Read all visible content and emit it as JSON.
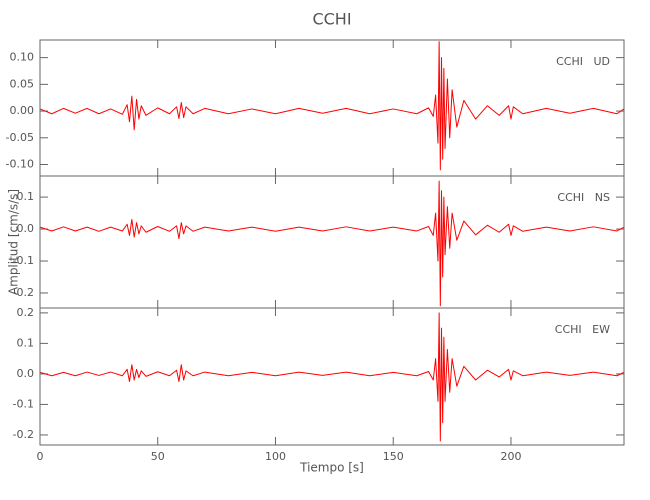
{
  "chart_data": [
    {
      "type": "line",
      "title": "CCHI",
      "label": "CCHI   UD",
      "color": "#ff0000",
      "xlim": [
        0,
        248
      ],
      "ylim": [
        -0.1215,
        0.133
      ],
      "yticks": [
        {
          "value": -0.1,
          "label": "-0.10"
        },
        {
          "value": -0.05,
          "label": "-0.05"
        },
        {
          "value": 0,
          "label": "0.00"
        },
        {
          "value": 0.05,
          "label": "0.05"
        },
        {
          "value": 0.1,
          "label": "0.10"
        }
      ],
      "x": [
        0,
        5,
        10,
        15,
        20,
        25,
        30,
        35,
        37,
        38,
        39,
        40,
        41,
        42,
        43,
        45,
        50,
        55,
        58,
        59,
        60,
        61,
        62,
        65,
        70,
        80,
        90,
        100,
        110,
        120,
        130,
        140,
        150,
        160,
        165,
        167,
        168,
        169,
        169.5,
        170,
        170.5,
        171,
        171.5,
        172,
        173,
        174,
        175,
        177,
        180,
        185,
        190,
        195,
        199,
        200,
        201,
        205,
        215,
        225,
        235,
        245,
        248
      ],
      "values": [
        0.004,
        -0.005,
        0.005,
        -0.004,
        0.005,
        -0.005,
        0.004,
        -0.006,
        0.012,
        -0.02,
        0.028,
        -0.035,
        0.022,
        -0.015,
        0.01,
        -0.008,
        0.006,
        -0.005,
        0.008,
        -0.014,
        0.016,
        -0.012,
        0.008,
        -0.005,
        0.005,
        -0.005,
        0.004,
        -0.005,
        0.005,
        -0.004,
        0.005,
        -0.005,
        0.004,
        -0.005,
        0.006,
        -0.01,
        0.03,
        -0.06,
        0.13,
        -0.11,
        0.1,
        -0.09,
        0.08,
        -0.07,
        0.06,
        -0.05,
        0.04,
        -0.03,
        0.02,
        -0.015,
        0.01,
        -0.008,
        0.01,
        -0.015,
        0.008,
        -0.005,
        0.005,
        -0.004,
        0.005,
        -0.005,
        0.004
      ]
    },
    {
      "type": "line",
      "ylabel": "Amplitud [cm/s/s]",
      "label": "CCHI   NS",
      "color": "#ff0000",
      "xlim": [
        0,
        248
      ],
      "ylim": [
        -0.247,
        0.166
      ],
      "yticks": [
        -0.2,
        -0.1,
        {
          "value": 0,
          "label": "0.0"
        },
        0.1
      ],
      "x": [
        0,
        5,
        10,
        15,
        20,
        25,
        30,
        35,
        37,
        38,
        39,
        40,
        41,
        42,
        43,
        45,
        50,
        55,
        58,
        59,
        60,
        61,
        62,
        65,
        70,
        80,
        90,
        100,
        110,
        120,
        130,
        140,
        150,
        160,
        165,
        167,
        168,
        169,
        169.5,
        170,
        170.5,
        171,
        171.5,
        172,
        173,
        174,
        175,
        177,
        180,
        185,
        190,
        195,
        199,
        200,
        201,
        205,
        215,
        225,
        235,
        245,
        248
      ],
      "values": [
        0.006,
        -0.006,
        0.007,
        -0.006,
        0.006,
        -0.007,
        0.006,
        -0.006,
        0.015,
        -0.02,
        0.03,
        -0.025,
        0.02,
        -0.015,
        0.01,
        -0.01,
        0.008,
        -0.007,
        0.01,
        -0.03,
        0.02,
        -0.015,
        0.01,
        -0.007,
        0.006,
        -0.006,
        0.006,
        -0.007,
        0.006,
        -0.006,
        0.007,
        -0.006,
        0.006,
        -0.006,
        0.008,
        -0.02,
        0.05,
        -0.1,
        0.15,
        -0.24,
        0.12,
        -0.15,
        0.1,
        -0.08,
        0.07,
        -0.06,
        0.05,
        -0.035,
        0.025,
        -0.018,
        0.012,
        -0.01,
        0.015,
        -0.02,
        0.01,
        -0.007,
        0.006,
        -0.006,
        0.007,
        -0.006,
        0.006
      ]
    },
    {
      "type": "line",
      "xlabel": "Tiempo [s]",
      "label": "CCHI   EW",
      "color": "#ff0000",
      "xlim": [
        0,
        248
      ],
      "ylim": [
        -0.233,
        0.216
      ],
      "xticks": [
        0,
        50,
        100,
        150,
        200
      ],
      "yticks": [
        -0.2,
        -0.1,
        {
          "value": 0,
          "label": "0.0"
        },
        0.1,
        0.2
      ],
      "x": [
        0,
        5,
        10,
        15,
        20,
        25,
        30,
        35,
        37,
        38,
        39,
        40,
        41,
        42,
        43,
        45,
        50,
        55,
        58,
        59,
        60,
        61,
        62,
        65,
        70,
        80,
        90,
        100,
        110,
        120,
        130,
        140,
        150,
        160,
        165,
        167,
        168,
        169,
        169.5,
        170,
        170.5,
        171,
        171.5,
        172,
        173,
        174,
        175,
        177,
        180,
        185,
        190,
        195,
        199,
        200,
        201,
        205,
        215,
        225,
        235,
        245,
        248
      ],
      "values": [
        0.005,
        -0.006,
        0.005,
        -0.006,
        0.006,
        -0.005,
        0.006,
        -0.006,
        0.015,
        -0.025,
        0.03,
        -0.02,
        0.015,
        -0.012,
        0.01,
        -0.008,
        0.007,
        -0.006,
        0.012,
        -0.025,
        0.03,
        -0.02,
        0.01,
        -0.006,
        0.006,
        -0.006,
        0.005,
        -0.006,
        0.006,
        -0.005,
        0.006,
        -0.006,
        0.005,
        -0.006,
        0.008,
        -0.02,
        0.05,
        -0.09,
        0.2,
        -0.22,
        0.15,
        -0.16,
        0.12,
        -0.09,
        0.08,
        -0.06,
        0.05,
        -0.04,
        0.025,
        -0.02,
        0.012,
        -0.01,
        0.015,
        -0.02,
        0.01,
        -0.006,
        0.006,
        -0.005,
        0.006,
        -0.006,
        0.005
      ]
    }
  ]
}
